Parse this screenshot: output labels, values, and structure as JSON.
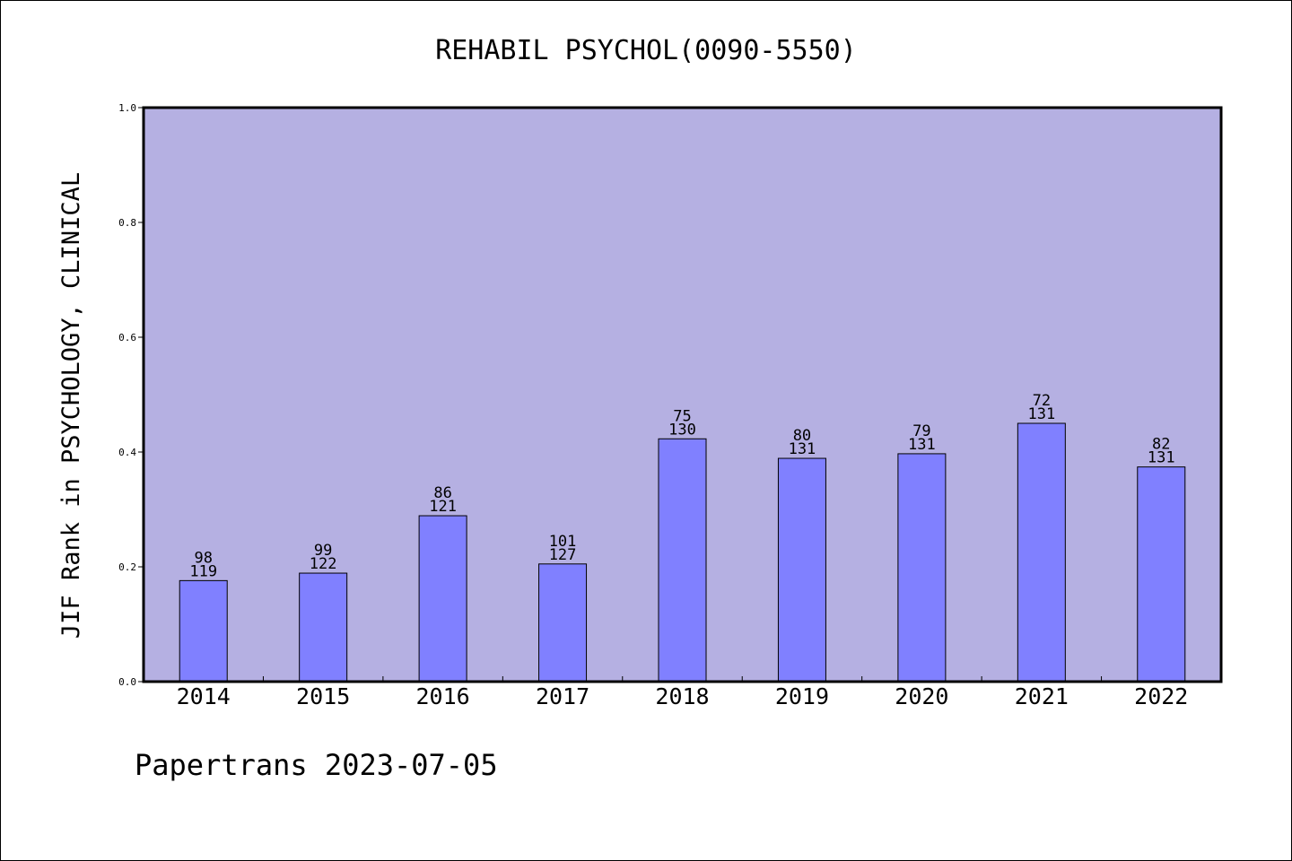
{
  "chart_data": {
    "type": "bar",
    "title": "REHABIL PSYCHOL(0090-5550)",
    "xlabel": "",
    "ylabel": "JIF Rank in PSYCHOLOGY, CLINICAL",
    "ylim": [
      0,
      1.0
    ],
    "yticks": [
      "0.0",
      "0.2",
      "0.4",
      "0.6",
      "0.8",
      "1.0"
    ],
    "categories": [
      "2014",
      "2015",
      "2016",
      "2017",
      "2018",
      "2019",
      "2020",
      "2021",
      "2022"
    ],
    "values": [
      0.176,
      0.189,
      0.289,
      0.205,
      0.423,
      0.389,
      0.397,
      0.45,
      0.374
    ],
    "rank": [
      "98",
      "99",
      "86",
      "101",
      "75",
      "80",
      "79",
      "72",
      "82"
    ],
    "total": [
      "119",
      "122",
      "121",
      "127",
      "130",
      "131",
      "131",
      "131",
      "131"
    ],
    "grid": false,
    "legend": "none",
    "colors": {
      "plot_background": "#b5b0e2",
      "bar_fill": "#8080ff",
      "frame": "#000000"
    }
  },
  "footer": {
    "text": "Papertrans 2023-07-05"
  }
}
